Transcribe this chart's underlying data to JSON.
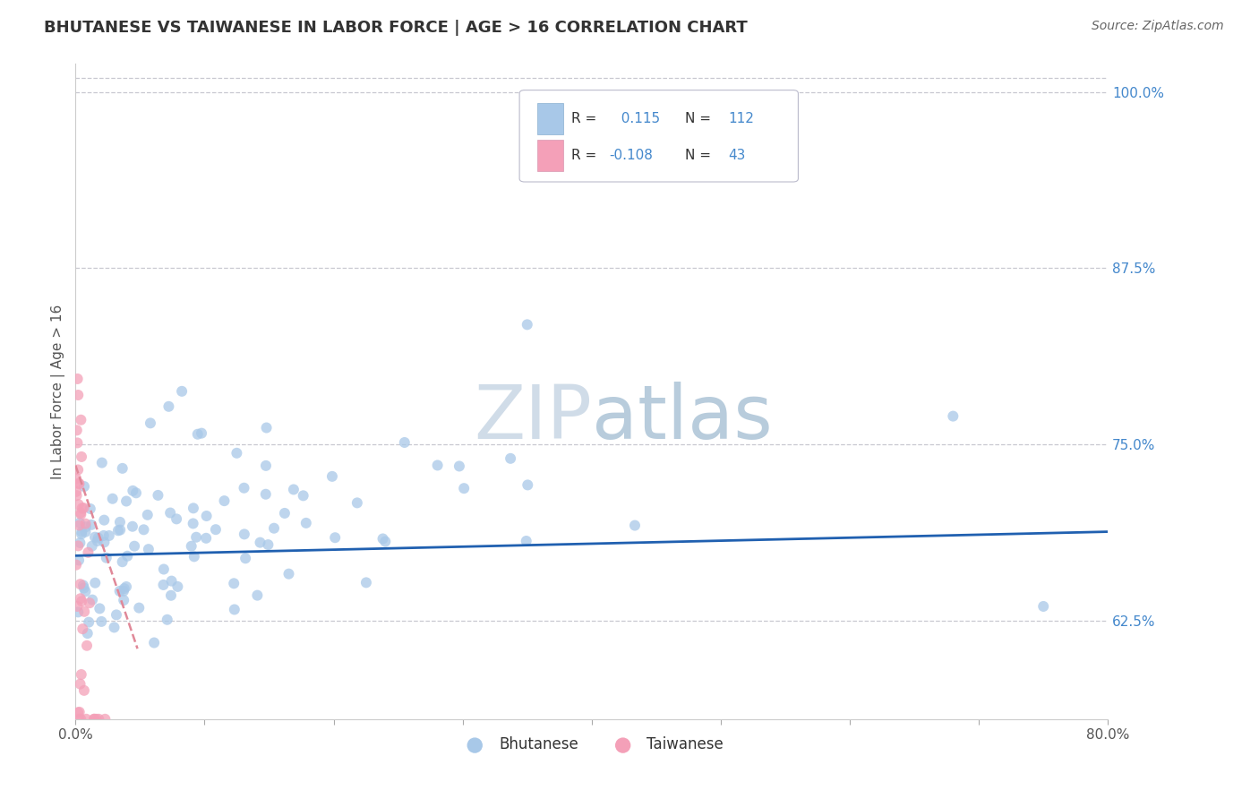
{
  "title": "BHUTANESE VS TAIWANESE IN LABOR FORCE | AGE > 16 CORRELATION CHART",
  "source_text": "Source: ZipAtlas.com",
  "ylabel": "In Labor Force | Age > 16",
  "x_min": 0.0,
  "x_max": 0.8,
  "y_min": 0.555,
  "y_max": 1.02,
  "x_ticks": [
    0.0,
    0.1,
    0.2,
    0.3,
    0.4,
    0.5,
    0.6,
    0.7,
    0.8
  ],
  "x_tick_labels": [
    "0.0%",
    "",
    "",
    "",
    "",
    "",
    "",
    "",
    "80.0%"
  ],
  "y_ticks": [
    0.625,
    0.75,
    0.875,
    1.0
  ],
  "y_tick_labels": [
    "62.5%",
    "75.0%",
    "87.5%",
    "100.0%"
  ],
  "bhutanese_R": 0.115,
  "bhutanese_N": 112,
  "taiwanese_R": -0.108,
  "taiwanese_N": 43,
  "bhutanese_color": "#a8c8e8",
  "taiwanese_color": "#f4a0b8",
  "bhutanese_line_color": "#2060b0",
  "taiwanese_line_color": "#e08898",
  "watermark_color": "#d0dce8",
  "background_color": "#ffffff",
  "grid_color": "#c8c8d0",
  "tick_color": "#4488cc",
  "title_color": "#333333",
  "source_color": "#666666"
}
